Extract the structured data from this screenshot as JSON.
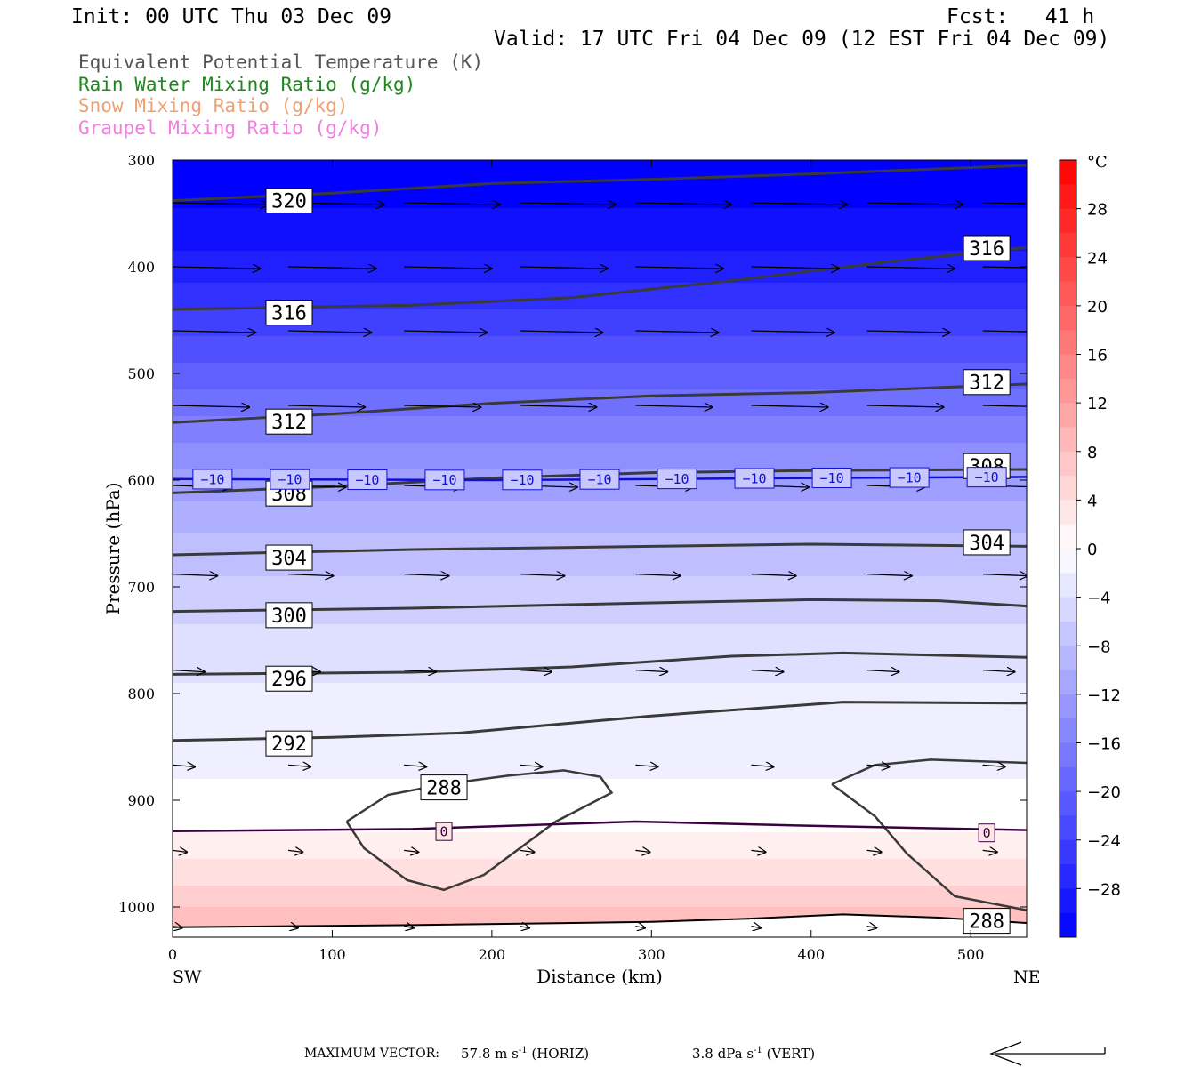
{
  "header": {
    "init": "Init: 00 UTC Thu 03 Dec 09",
    "fcst": "Fcst:   41 h",
    "valid": "Valid: 17 UTC Fri 04 Dec 09 (12 EST Fri 04 Dec 09)"
  },
  "legend": [
    {
      "label": "Equivalent Potential Temperature (K)",
      "color": "#555555"
    },
    {
      "label": "Rain Water Mixing Ratio (g/kg)",
      "color": "#1a8a1a"
    },
    {
      "label": "Snow Mixing Ratio (g/kg)",
      "color": "#f0a070"
    },
    {
      "label": "Graupel Mixing Ratio (g/kg)",
      "color": "#f080e0"
    }
  ],
  "chart_data": {
    "type": "heatmap",
    "ylabel": "Pressure (hPa)",
    "xlabel": "Distance (km)",
    "x_ticks": [
      "0",
      "100",
      "200",
      "300",
      "400",
      "500"
    ],
    "y_ticks": [
      "300",
      "400",
      "500",
      "600",
      "700",
      "800",
      "900",
      "1000"
    ],
    "xlim": [
      0,
      535
    ],
    "ylim": [
      300,
      1030
    ],
    "x_end_labels": {
      "left": "SW",
      "right": "NE"
    },
    "colorbar": {
      "unit": "°C",
      "labels": [
        "28",
        "24",
        "20",
        "16",
        "12",
        "8",
        "4",
        "0",
        "−4",
        "−8",
        "−12",
        "−16",
        "−20",
        "−24",
        "−28"
      ],
      "range": [
        -32,
        32
      ]
    },
    "theta_e_contours": [
      {
        "value": 320,
        "label": "320",
        "points": [
          [
            0,
            338
          ],
          [
            100,
            331
          ],
          [
            200,
            322
          ],
          [
            300,
            318
          ],
          [
            400,
            313
          ],
          [
            535,
            305
          ]
        ]
      },
      {
        "value": 316,
        "label": "316",
        "points": [
          [
            0,
            440
          ],
          [
            150,
            436
          ],
          [
            250,
            429
          ],
          [
            350,
            413
          ],
          [
            450,
            395
          ],
          [
            535,
            382
          ]
        ]
      },
      {
        "value": 312,
        "label": "312",
        "points": [
          [
            0,
            546
          ],
          [
            100,
            538
          ],
          [
            200,
            528
          ],
          [
            300,
            521
          ],
          [
            400,
            518
          ],
          [
            535,
            510
          ]
        ]
      },
      {
        "value": 308,
        "label": "308",
        "points": [
          [
            0,
            612
          ],
          [
            100,
            606
          ],
          [
            200,
            598
          ],
          [
            300,
            593
          ],
          [
            400,
            591
          ],
          [
            535,
            590
          ]
        ]
      },
      {
        "value": 304,
        "label": "304",
        "points": [
          [
            0,
            670
          ],
          [
            150,
            665
          ],
          [
            300,
            662
          ],
          [
            400,
            660
          ],
          [
            535,
            662
          ]
        ]
      },
      {
        "value": 300,
        "label": "300",
        "points": [
          [
            0,
            723
          ],
          [
            150,
            720
          ],
          [
            300,
            715
          ],
          [
            400,
            712
          ],
          [
            480,
            713
          ],
          [
            535,
            718
          ]
        ]
      },
      {
        "value": 296,
        "label": "296",
        "points": [
          [
            0,
            782
          ],
          [
            150,
            780
          ],
          [
            250,
            775
          ],
          [
            350,
            765
          ],
          [
            420,
            762
          ],
          [
            535,
            766
          ]
        ]
      },
      {
        "value": 292,
        "label": "292",
        "points": [
          [
            0,
            844
          ],
          [
            100,
            841
          ],
          [
            180,
            837
          ],
          [
            300,
            821
          ],
          [
            420,
            808
          ],
          [
            535,
            809
          ]
        ]
      }
    ],
    "contour_288_closed": [
      [
        109,
        920
      ],
      [
        135,
        895
      ],
      [
        170,
        885
      ],
      [
        210,
        877
      ],
      [
        245,
        872
      ],
      [
        268,
        878
      ],
      [
        275,
        893
      ],
      [
        240,
        920
      ],
      [
        195,
        970
      ],
      [
        170,
        984
      ],
      [
        147,
        975
      ],
      [
        120,
        945
      ],
      [
        109,
        920
      ]
    ],
    "contour_288_right": [
      [
        413,
        885
      ],
      [
        440,
        867
      ],
      [
        475,
        862
      ],
      [
        535,
        865
      ]
    ],
    "contour_288_right_branch": [
      [
        413,
        885
      ],
      [
        440,
        915
      ],
      [
        460,
        950
      ],
      [
        490,
        990
      ],
      [
        535,
        1003
      ]
    ],
    "contour_288_labels": [
      {
        "x": 170,
        "y": 888,
        "label": "288"
      },
      {
        "x": 510,
        "y": 1013,
        "label": "288"
      }
    ],
    "contour_0c": {
      "value": 0,
      "label": "0",
      "points": [
        [
          0,
          929
        ],
        [
          150,
          927
        ],
        [
          290,
          920
        ],
        [
          400,
          924
        ],
        [
          535,
          928
        ]
      ],
      "labels_x": [
        170,
        510
      ]
    },
    "contour_neg10": {
      "value": -10,
      "label": "−10",
      "points": [
        [
          0,
          599
        ],
        [
          200,
          600
        ],
        [
          400,
          598
        ],
        [
          535,
          597
        ]
      ]
    },
    "ground_line": [
      [
        0,
        1019
      ],
      [
        150,
        1017
      ],
      [
        300,
        1014
      ],
      [
        360,
        1011
      ],
      [
        420,
        1007
      ],
      [
        480,
        1010
      ],
      [
        535,
        1015
      ]
    ],
    "wind_rows": [
      {
        "p": 340,
        "len_km": 60
      },
      {
        "p": 400,
        "len_km": 55
      },
      {
        "p": 460,
        "len_km": 52
      },
      {
        "p": 530,
        "len_km": 48
      },
      {
        "p": 605,
        "len_km": 36
      },
      {
        "p": 688,
        "len_km": 28
      },
      {
        "p": 778,
        "len_km": 20
      },
      {
        "p": 867,
        "len_km": 14
      },
      {
        "p": 947,
        "len_km": 9
      },
      {
        "p": 1018,
        "len_km": 6
      }
    ]
  },
  "footer": {
    "max_vector_label": "MAXIMUM VECTOR:",
    "horiz_value": "57.8 m s",
    "horiz_exp": "-1",
    "horiz_unit": " (HORIZ)",
    "vert_value": "3.8 dPa s",
    "vert_exp": "-1",
    "vert_unit": " (VERT)"
  }
}
